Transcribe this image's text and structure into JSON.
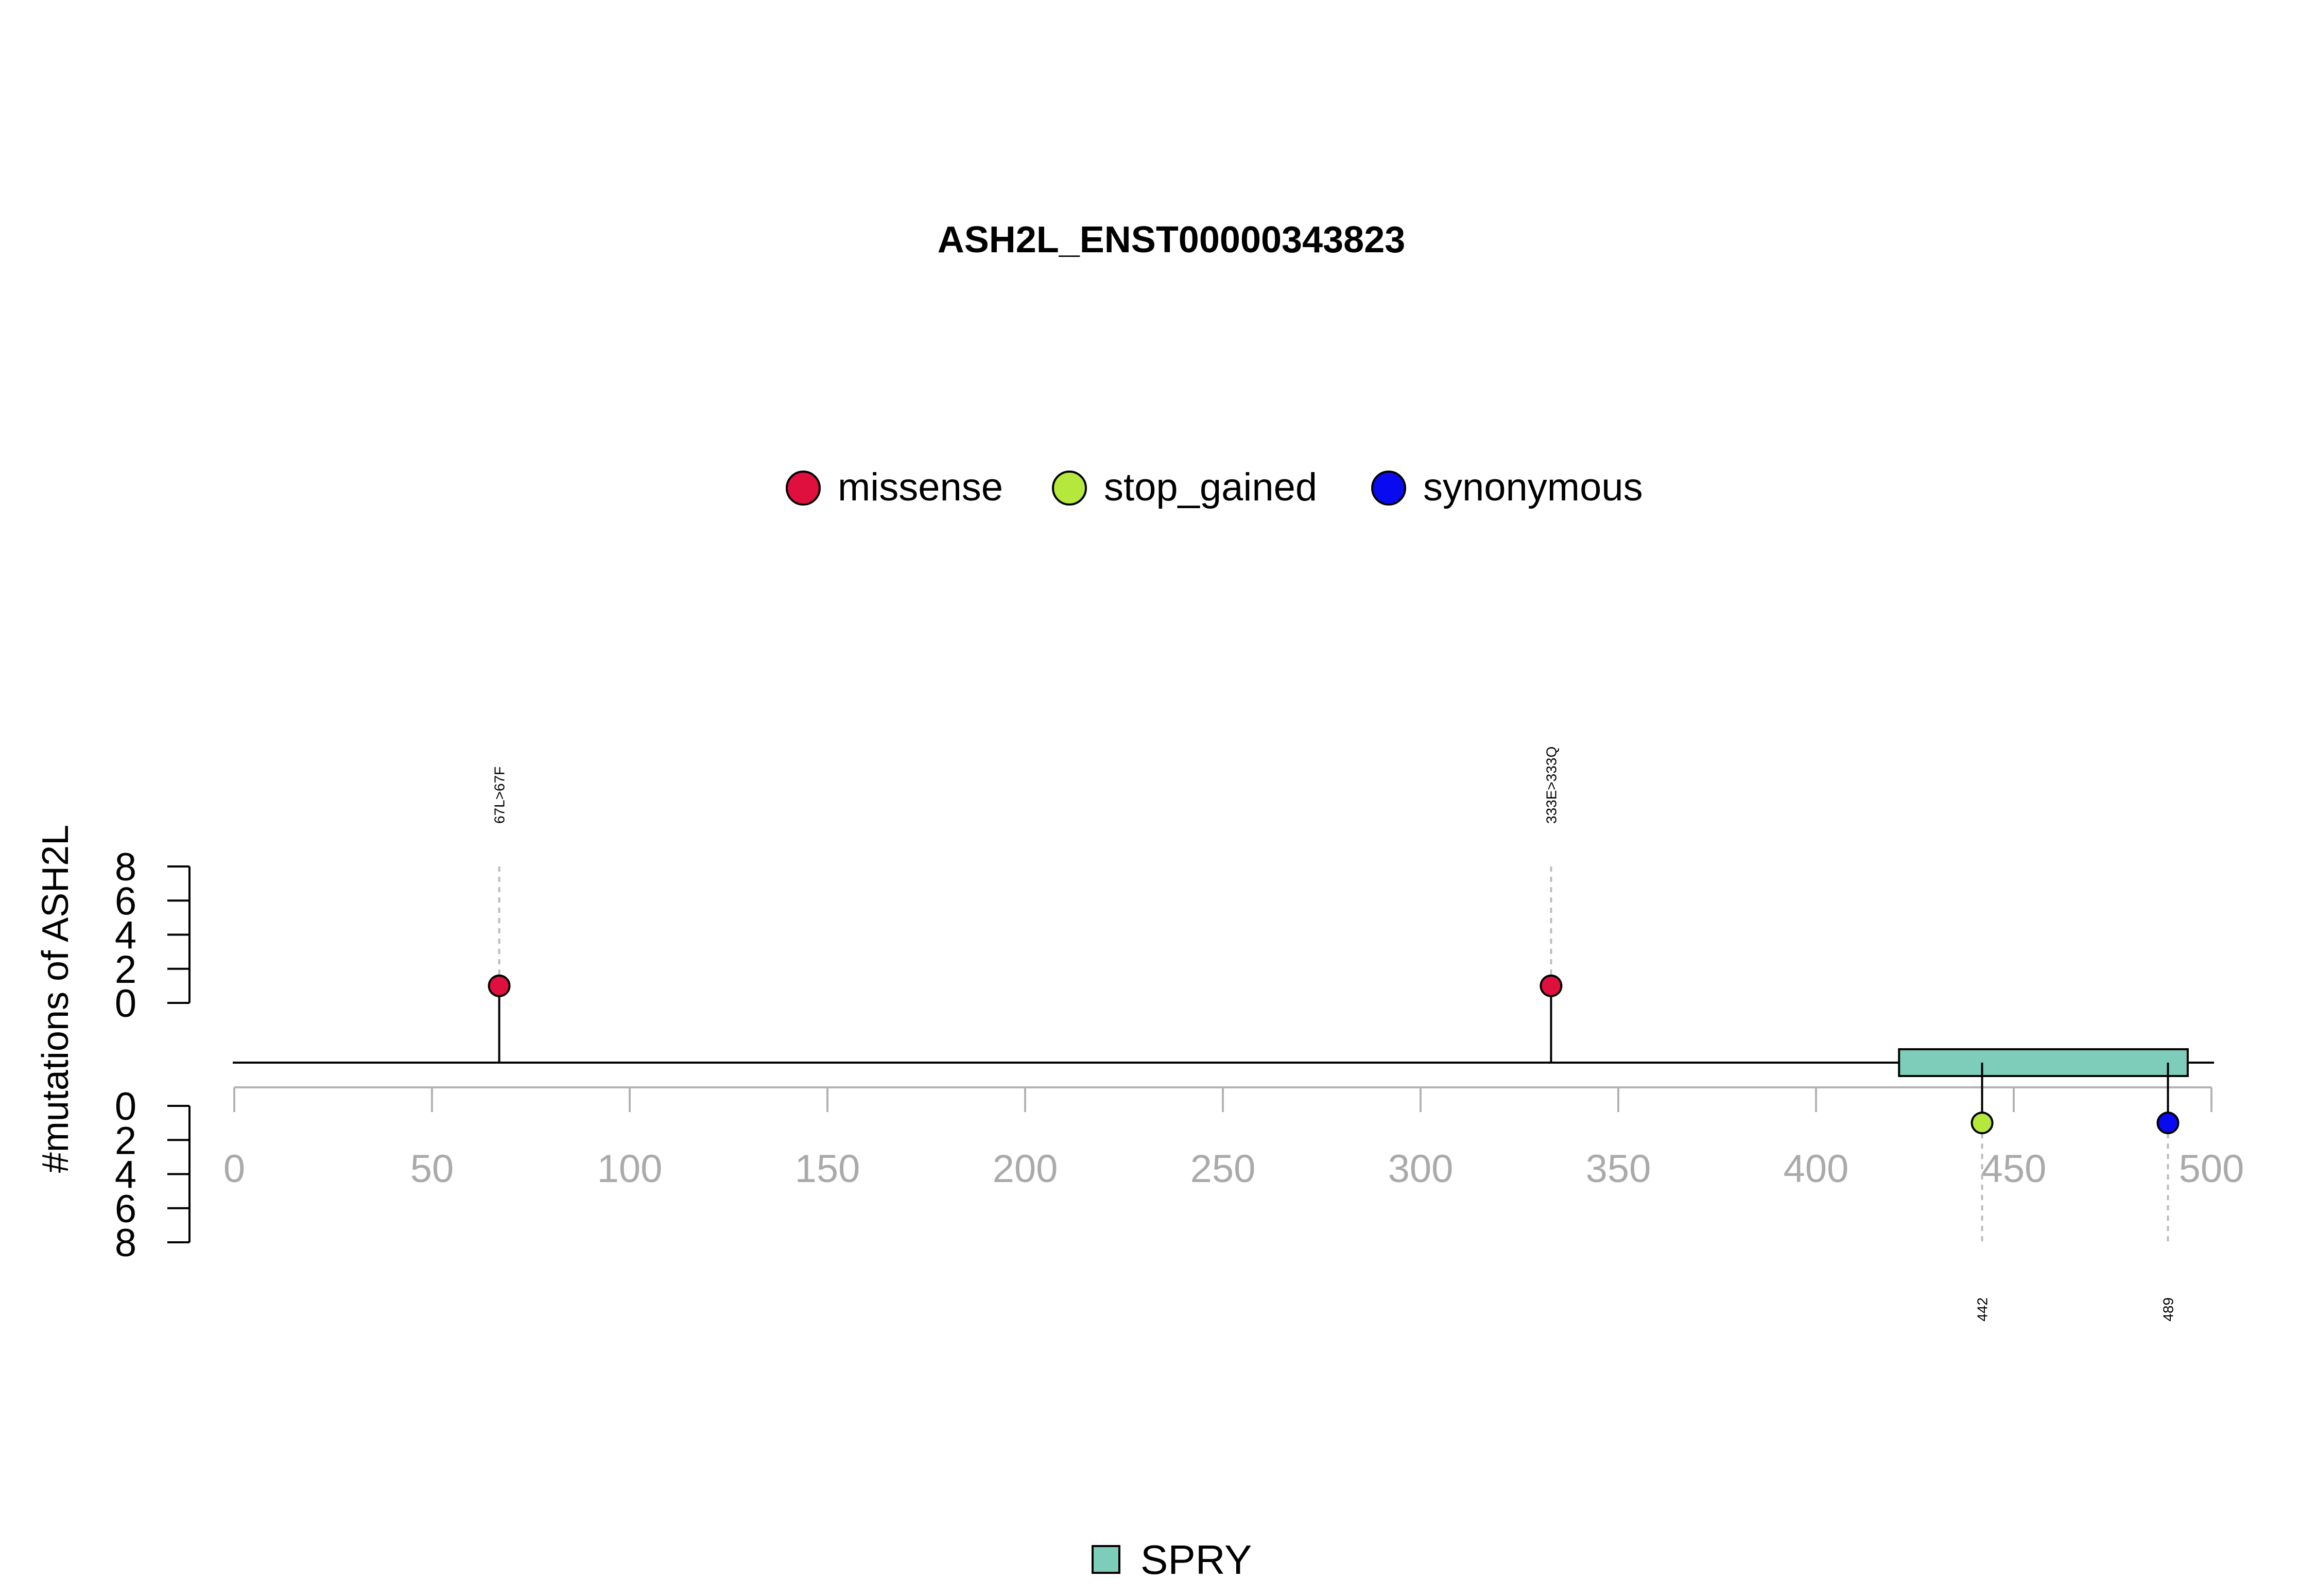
{
  "chart_data": {
    "type": "lollipop",
    "title": "ASH2L_ENST00000343823",
    "ylabel": "#mutations of ASH2L",
    "xlim": [
      0,
      500
    ],
    "x_ticks": [
      0,
      50,
      100,
      150,
      200,
      250,
      300,
      350,
      400,
      450,
      500
    ],
    "y_ticks": [
      0,
      2,
      4,
      6,
      8
    ],
    "ylim": [
      0,
      8
    ],
    "legend": {
      "placement": "top-center",
      "entries": [
        {
          "name": "missense",
          "color": "#E0103E"
        },
        {
          "name": "stop_gained",
          "color": "#B5E83C"
        },
        {
          "name": "synonymous",
          "color": "#0A0AF0"
        }
      ]
    },
    "domain_legend": {
      "placement": "bottom-center",
      "entries": [
        {
          "name": "SPRY",
          "color": "#7ECDBB"
        }
      ]
    },
    "domains": [
      {
        "name": "SPRY",
        "start": 421,
        "end": 494,
        "color": "#7ECDBB"
      }
    ],
    "mutations_above": [
      {
        "position": 67,
        "count": 1,
        "type": "missense",
        "label": "67L>67F"
      },
      {
        "position": 333,
        "count": 1,
        "type": "missense",
        "label": "333E>333Q"
      }
    ],
    "mutations_below": [
      {
        "position": 442,
        "count": 1,
        "type": "stop_gained",
        "label": "442"
      },
      {
        "position": 489,
        "count": 1,
        "type": "synonymous",
        "label": "489"
      }
    ]
  }
}
